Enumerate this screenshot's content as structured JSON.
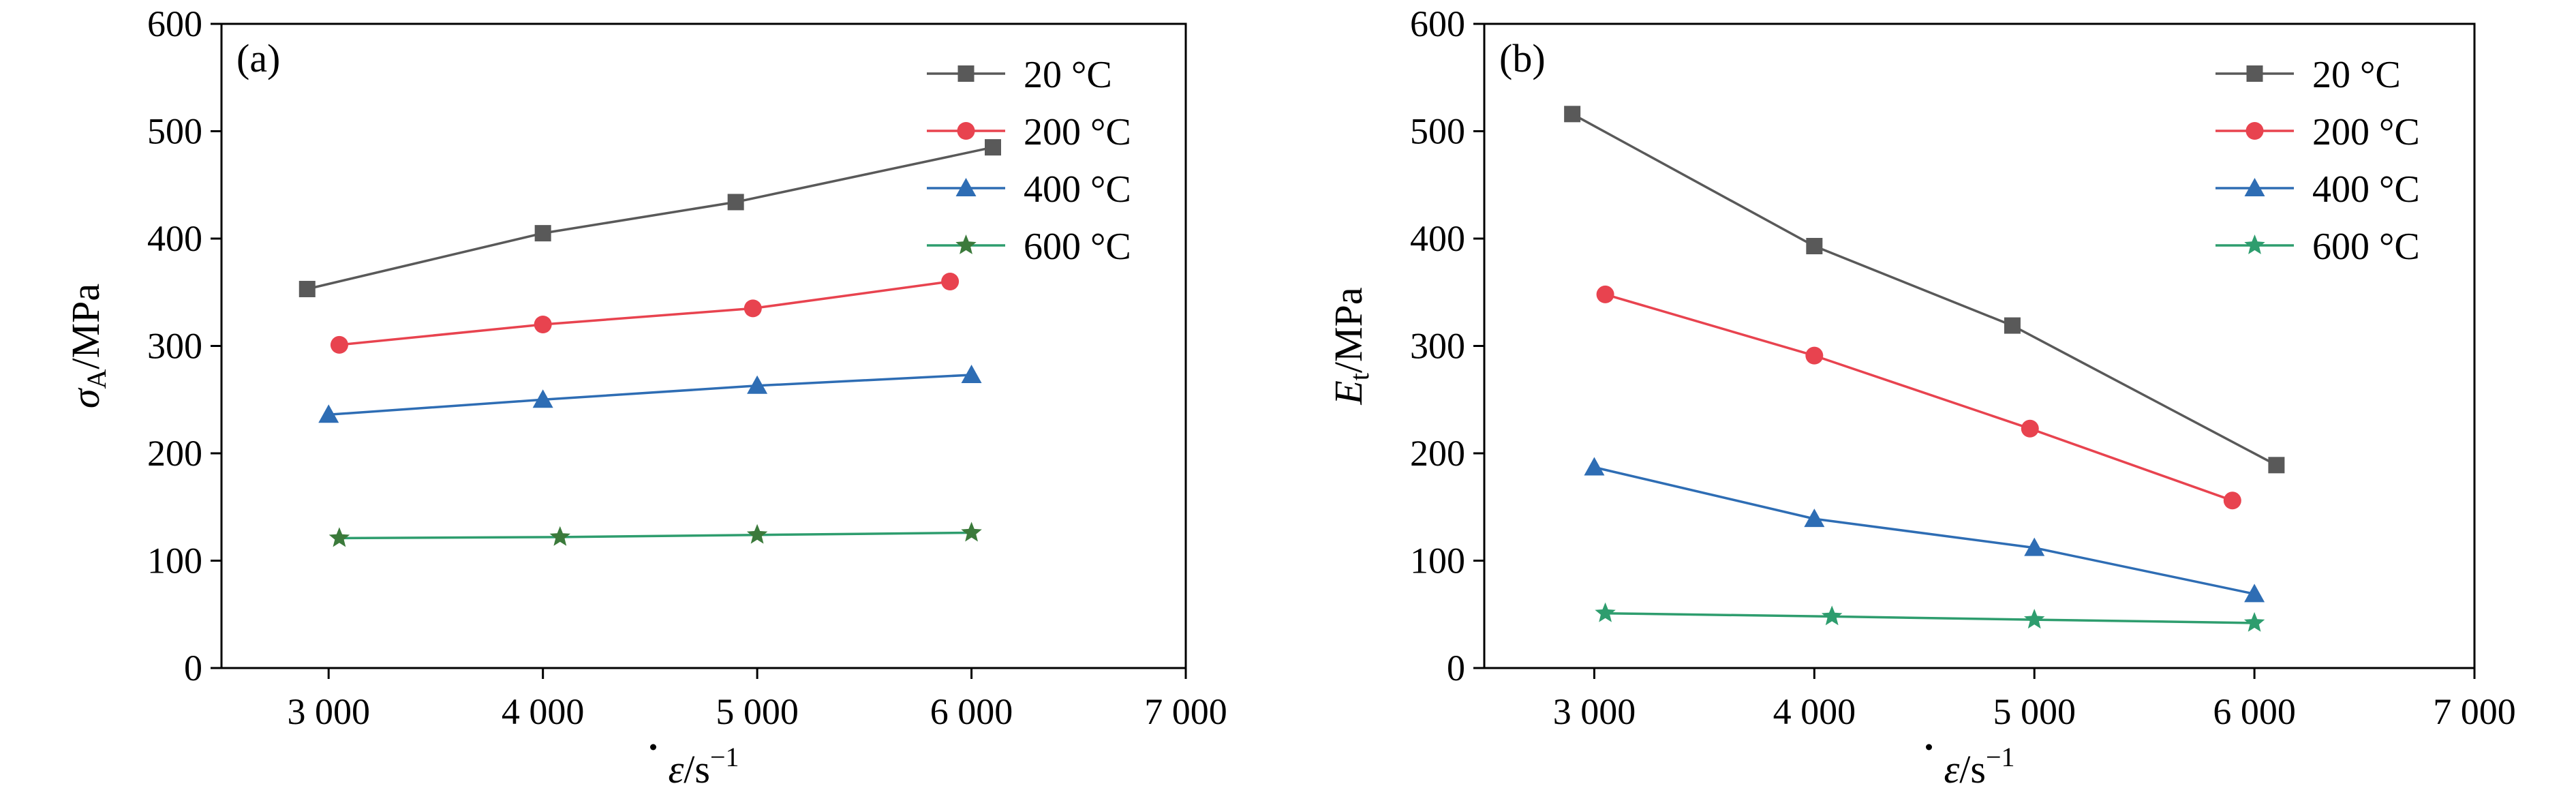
{
  "chart_data": [
    {
      "type": "line",
      "panel": "(a)",
      "title": "",
      "xlabel": "ε/s",
      "xlabel_sup": "−1",
      "ylabel": "σ",
      "ylabel_sub": "A",
      "ylabel_unit": "/MPa",
      "xlim": [
        2500,
        7000
      ],
      "ylim": [
        0,
        600
      ],
      "xticks": [
        3000,
        4000,
        5000,
        6000,
        7000
      ],
      "xtick_labels": [
        "3 000",
        "4 000",
        "5 000",
        "6 000",
        "7 000"
      ],
      "yticks": [
        0,
        100,
        200,
        300,
        400,
        500,
        600
      ],
      "ytick_labels": [
        "0",
        "100",
        "200",
        "300",
        "400",
        "500",
        "600"
      ],
      "legend_position": "top-right",
      "series": [
        {
          "name": "20 °C",
          "marker": "square",
          "color": "#595959",
          "x": [
            2900,
            4000,
            4900,
            6100
          ],
          "y": [
            353,
            405,
            434,
            485
          ]
        },
        {
          "name": "200 °C",
          "marker": "circle",
          "color": "#E8434F",
          "x": [
            3050,
            4000,
            4980,
            5900
          ],
          "y": [
            301,
            320,
            335,
            360
          ]
        },
        {
          "name": "400 °C",
          "marker": "triangle",
          "color": "#2E6DB4",
          "x": [
            3000,
            4000,
            5000,
            6000
          ],
          "y": [
            236,
            250,
            263,
            273
          ]
        },
        {
          "name": "600 °C",
          "marker": "star",
          "color": "#2E9D6E",
          "markerColor": "#3B7A3B",
          "x": [
            3050,
            4080,
            5000,
            6000
          ],
          "y": [
            121,
            122,
            124,
            126
          ]
        }
      ]
    },
    {
      "type": "line",
      "panel": "(b)",
      "title": "",
      "xlabel": "ε/s",
      "xlabel_sup": "−1",
      "ylabel": "E",
      "ylabel_sub": "t",
      "ylabel_unit": "/MPa",
      "xlim": [
        2500,
        7000
      ],
      "ylim": [
        0,
        600
      ],
      "xticks": [
        3000,
        4000,
        5000,
        6000,
        7000
      ],
      "xtick_labels": [
        "3 000",
        "4 000",
        "5 000",
        "6 000",
        "7 000"
      ],
      "yticks": [
        0,
        100,
        200,
        300,
        400,
        500,
        600
      ],
      "ytick_labels": [
        "0",
        "100",
        "200",
        "300",
        "400",
        "500",
        "600"
      ],
      "legend_position": "top-right",
      "series": [
        {
          "name": "20 °C",
          "marker": "square",
          "color": "#595959",
          "x": [
            2900,
            4000,
            4900,
            6100
          ],
          "y": [
            516,
            393,
            319,
            189
          ]
        },
        {
          "name": "200 °C",
          "marker": "circle",
          "color": "#E8434F",
          "x": [
            3050,
            4000,
            4980,
            5900
          ],
          "y": [
            348,
            291,
            223,
            156
          ]
        },
        {
          "name": "400 °C",
          "marker": "triangle",
          "color": "#2E6DB4",
          "x": [
            3000,
            4000,
            5000,
            6000
          ],
          "y": [
            187,
            139,
            112,
            69
          ]
        },
        {
          "name": "600 °C",
          "marker": "star",
          "color": "#2E9D6E",
          "markerColor": "#2E9D6E",
          "x": [
            3050,
            4080,
            5000,
            6000
          ],
          "y": [
            51,
            48,
            45,
            42
          ]
        }
      ]
    }
  ]
}
